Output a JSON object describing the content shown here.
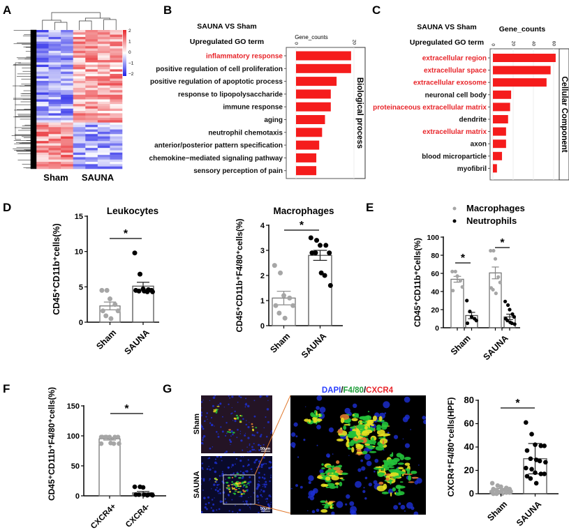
{
  "panel_labels": [
    "A",
    "B",
    "C",
    "D",
    "E",
    "F",
    "G"
  ],
  "chart_data": [
    {
      "id": "A",
      "type": "heatmap",
      "groups": [
        "Sham",
        "SAUNA"
      ],
      "samples_per_group": [
        3,
        4
      ],
      "colorbar_ticks": [
        "2",
        "1",
        "0",
        "−1",
        "−2"
      ],
      "colorbar_range": [
        -2,
        2
      ],
      "colors": {
        "high": "#e8262b",
        "mid": "#ffffff",
        "low": "#1f1fe8"
      }
    },
    {
      "id": "B",
      "type": "bar",
      "title": "SAUNA  VS  Sham",
      "subtitle": "Upregulated GO term",
      "xlabel": "Gene_counts",
      "xticks": [
        "0",
        "20"
      ],
      "xlim": [
        0,
        20
      ],
      "facet": "Biological process",
      "categories": [
        {
          "label": "inflammatory response",
          "value": 19,
          "highlight": true
        },
        {
          "label": "positive regulation of cell proliferation",
          "value": 19,
          "highlight": false
        },
        {
          "label": "positive regulation of apoptotic process",
          "value": 14,
          "highlight": false
        },
        {
          "label": "response to lipopolysaccharide",
          "value": 12,
          "highlight": false
        },
        {
          "label": "immune response",
          "value": 12,
          "highlight": false
        },
        {
          "label": "aging",
          "value": 10,
          "highlight": false
        },
        {
          "label": "neutrophil chemotaxis",
          "value": 9,
          "highlight": false
        },
        {
          "label": "anterior/posterior pattern specification",
          "value": 8,
          "highlight": false
        },
        {
          "label": "chemokine−mediated signaling pathway",
          "value": 7,
          "highlight": false
        },
        {
          "label": "sensory perception of pain",
          "value": 7,
          "highlight": false
        }
      ]
    },
    {
      "id": "C",
      "type": "bar",
      "title": "SAUNA VS Sham",
      "subtitle": "Upregulated GO term",
      "xlabel": "Gene_counts",
      "xticks": [
        "0",
        "20",
        "40",
        "60"
      ],
      "xlim": [
        0,
        60
      ],
      "facet": "Cellular Component",
      "categories": [
        {
          "label": "extracellular region",
          "value": 62,
          "highlight": true
        },
        {
          "label": "extracellular space",
          "value": 57,
          "highlight": true
        },
        {
          "label": "extracellular exosome",
          "value": 53,
          "highlight": true
        },
        {
          "label": "neuronal cell body",
          "value": 18,
          "highlight": false
        },
        {
          "label": "proteinaceous extracellular matrix",
          "value": 17,
          "highlight": true
        },
        {
          "label": "dendrite",
          "value": 15,
          "highlight": false
        },
        {
          "label": "extracellular matrix",
          "value": 13,
          "highlight": true
        },
        {
          "label": "axon",
          "value": 13,
          "highlight": false
        },
        {
          "label": "blood microparticle",
          "value": 9,
          "highlight": false
        },
        {
          "label": "myofibril",
          "value": 4,
          "highlight": false
        }
      ]
    },
    {
      "id": "D1",
      "type": "bar",
      "title": "Leukocytes",
      "ylabel": "CD45⁺CD11b⁺cells(%)",
      "yticks": [
        "0",
        "5",
        "10",
        "15"
      ],
      "ylim": [
        0,
        15
      ],
      "significance": "*",
      "series": [
        {
          "name": "Sham",
          "mean": 2.3,
          "err": 0.55,
          "points": [
            4.5,
            4.5,
            3.3,
            2.5,
            1.6,
            1.6,
            0.9,
            0.5
          ],
          "color": "#a6a6a6"
        },
        {
          "name": "SAUNA",
          "mean": 5.1,
          "err": 0.55,
          "points": [
            9.8,
            6.8,
            4.7,
            4.6,
            4.5,
            4.5,
            4.4,
            4.4,
            4.3,
            4.3
          ],
          "color": "#000000"
        }
      ]
    },
    {
      "id": "D2",
      "type": "bar",
      "title": "Macrophages",
      "ylabel": "CD45⁺CD11b⁺F4/80⁺cells(%)",
      "yticks": [
        "0",
        "1",
        "2",
        "3",
        "4"
      ],
      "ylim": [
        0,
        4
      ],
      "significance": "*",
      "series": [
        {
          "name": "Sham",
          "mean": 1.1,
          "err": 0.27,
          "points": [
            2.4,
            2.1,
            1.2,
            1.1,
            0.8,
            0.8,
            0.5,
            0.3
          ],
          "color": "#a6a6a6"
        },
        {
          "name": "SAUNA",
          "mean": 2.8,
          "err": 0.2,
          "points": [
            3.5,
            3.4,
            3.2,
            3.2,
            2.9,
            2.9,
            2.9,
            2.1,
            2.0,
            1.6
          ],
          "color": "#000000"
        }
      ]
    },
    {
      "id": "E",
      "type": "bar",
      "ylabel": "CD45⁺CD11b⁺Cells(%)",
      "yticks": [
        "0",
        "20",
        "40",
        "60",
        "80",
        "100"
      ],
      "ylim": [
        0,
        100
      ],
      "categories": [
        "Sham",
        "SAUNA"
      ],
      "legend": [
        {
          "name": "Macrophages",
          "color": "#a6a6a6"
        },
        {
          "name": "Neutrophils",
          "color": "#000000"
        }
      ],
      "legend_position": "top",
      "significance": "*",
      "series": [
        {
          "name": "Macrophages",
          "group": "Sham",
          "mean": 53.5,
          "err": 3.2,
          "points": [
            62,
            62,
            57,
            52,
            45,
            41
          ],
          "color": "#a6a6a6"
        },
        {
          "name": "Neutrophils",
          "group": "Sham",
          "mean": 13.5,
          "err": 3.5,
          "points": [
            30,
            18,
            12,
            10,
            8,
            5
          ],
          "color": "#000000"
        },
        {
          "name": "Macrophages",
          "group": "SAUNA",
          "mean": 60.5,
          "err": 6.5,
          "points": [
            85,
            85,
            76,
            56,
            50,
            44,
            42,
            38
          ],
          "color": "#a6a6a6"
        },
        {
          "name": "Neutrophils",
          "group": "SAUNA",
          "mean": 12,
          "err": 3,
          "points": [
            29,
            25,
            20,
            15,
            12,
            10,
            8,
            6,
            5,
            4
          ],
          "color": "#000000"
        }
      ]
    },
    {
      "id": "F",
      "type": "bar",
      "ylabel": "CD45⁺CD11b⁺F4/80⁺cells(%)",
      "yticks": [
        "0",
        "50",
        "100",
        "150"
      ],
      "ylim": [
        0,
        150
      ],
      "significance": "*",
      "series": [
        {
          "name": "CXCR4+",
          "mean": 95,
          "err": 2,
          "points": [
            98,
            98,
            98,
            98,
            98,
            98,
            98,
            88,
            87,
            87,
            87
          ],
          "color": "#a6a6a6"
        },
        {
          "name": "CXCR4-",
          "mean": 5,
          "err": 2.5,
          "points": [
            15,
            15,
            14,
            2,
            2,
            2,
            2,
            2,
            1,
            1
          ],
          "color": "#000000"
        }
      ]
    },
    {
      "id": "G",
      "type": "bar",
      "ylabel": "CXCR4⁺F4/80⁺cells(HPF)",
      "yticks": [
        "0",
        "20",
        "40",
        "60",
        "80"
      ],
      "ylim": [
        0,
        80
      ],
      "significance": "*",
      "series": [
        {
          "name": "Sham",
          "mean": 2.5,
          "err": 2,
          "points": [
            9,
            7,
            6,
            5,
            4,
            4,
            3,
            3,
            3,
            2,
            2,
            2,
            1,
            1,
            1,
            0,
            0,
            0
          ],
          "color": "#a6a6a6"
        },
        {
          "name": "SAUNA",
          "mean": 30,
          "err": 13,
          "points": [
            61,
            51,
            42,
            41,
            41,
            37,
            30,
            29,
            28,
            27,
            22,
            21,
            18,
            17,
            17,
            15,
            13,
            9
          ],
          "color": "#000000"
        }
      ]
    }
  ],
  "micrographs": {
    "stain_title": [
      {
        "text": "DAPI",
        "color": "#2a3fff"
      },
      {
        "text": "/",
        "color": "#000000"
      },
      {
        "text": "F4/80",
        "color": "#1f9e3a"
      },
      {
        "text": "/",
        "color": "#000000"
      },
      {
        "text": "CXCR4",
        "color": "#e8262b"
      }
    ],
    "rows": [
      "Sham",
      "SAUNA"
    ],
    "scale_bar": "50μm"
  }
}
